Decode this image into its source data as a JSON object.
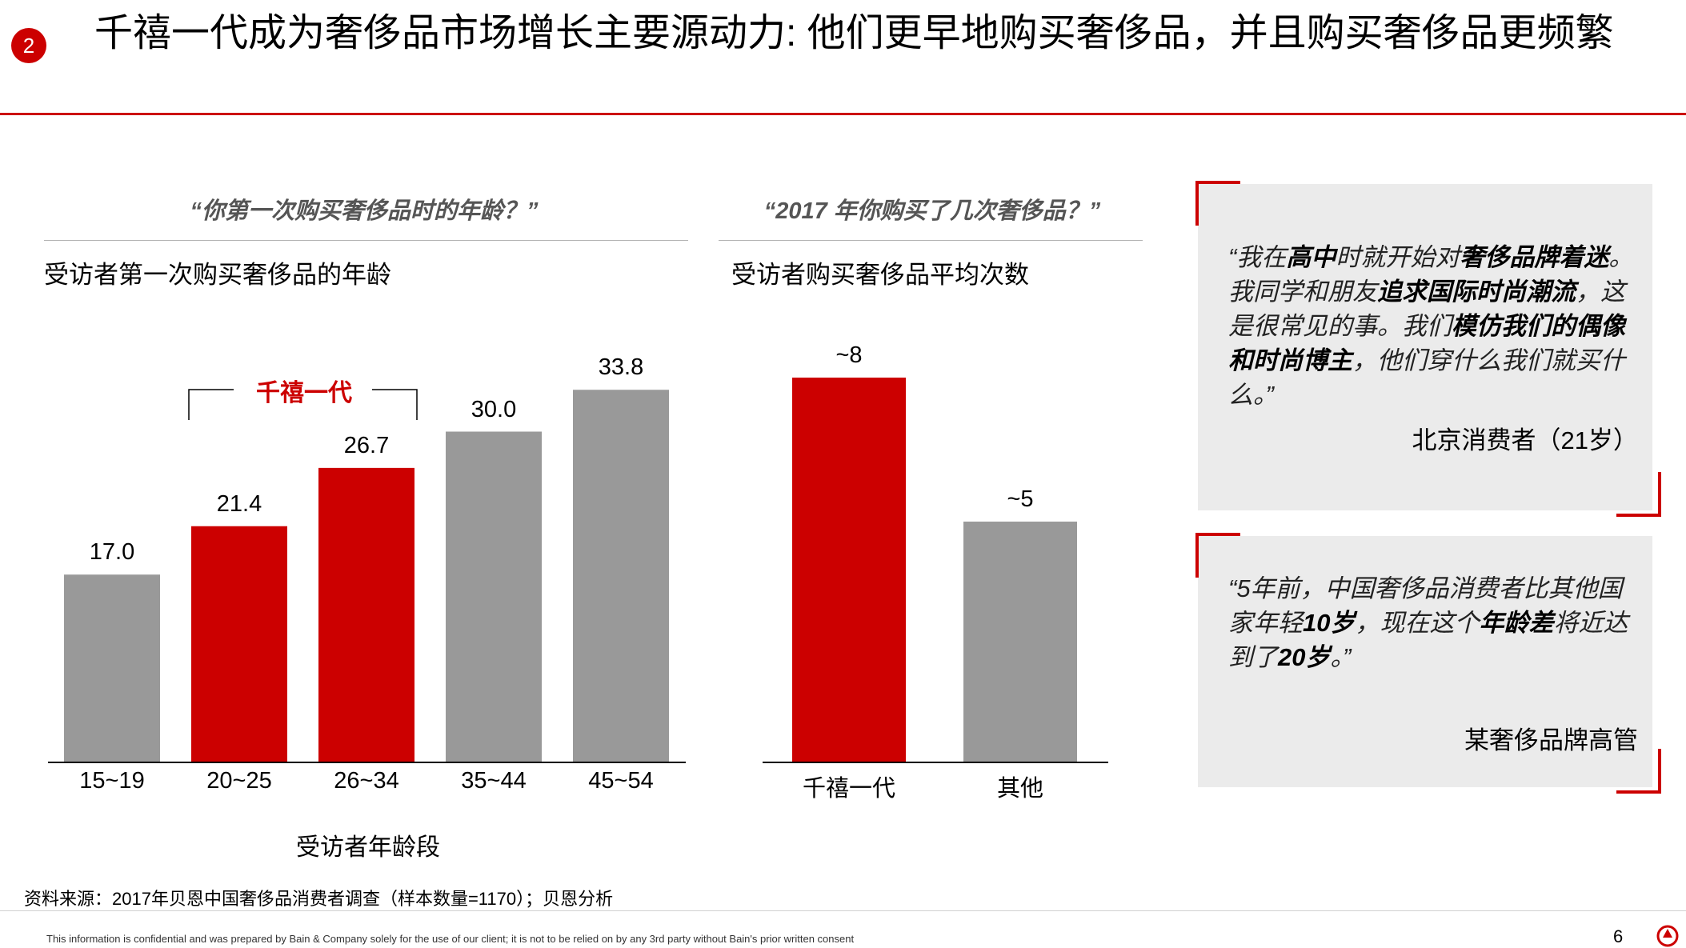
{
  "header": {
    "badge": "2",
    "title": "千禧一代成为奢侈品市场增长主要源动力: 他们更早地购买奢侈品，并且购买奢侈品更频繁"
  },
  "left_panel": {
    "question": "“你第一次购买奢侈品时的年龄？”",
    "subtitle": "受访者第一次购买奢侈品的年龄",
    "bracket_label": "千禧一代",
    "axis_label": "受访者年龄段"
  },
  "middle_panel": {
    "question": "“2017 年你购买了几次奢侈品？”",
    "subtitle": "受访者购买奢侈品平均次数"
  },
  "chart_data": [
    {
      "type": "bar",
      "title": "受访者第一次购买奢侈品的年龄",
      "xlabel": "受访者年龄段",
      "ylabel": "",
      "categories": [
        "15~19",
        "20~25",
        "26~34",
        "35~44",
        "45~54"
      ],
      "values": [
        17.0,
        21.4,
        26.7,
        30.0,
        33.8
      ],
      "value_labels": [
        "17.0",
        "21.4",
        "26.7",
        "30.0",
        "33.8"
      ],
      "highlighted": [
        false,
        true,
        true,
        false,
        false
      ],
      "ylim": [
        0,
        40
      ],
      "colors": {
        "highlight": "#cc0000",
        "default": "#999999"
      }
    },
    {
      "type": "bar",
      "title": "受访者购买奢侈品平均次数",
      "xlabel": "",
      "ylabel": "",
      "categories": [
        "千禧一代",
        "其他"
      ],
      "values": [
        8,
        5
      ],
      "value_labels": [
        "~8",
        "~5"
      ],
      "highlighted": [
        true,
        false
      ],
      "ylim": [
        0,
        9
      ],
      "colors": {
        "highlight": "#cc0000",
        "default": "#999999"
      }
    }
  ],
  "quotes": [
    {
      "segments": [
        {
          "t": "“我在",
          "b": false
        },
        {
          "t": "高中",
          "b": true
        },
        {
          "t": "时就开始对",
          "b": false
        },
        {
          "t": "奢侈品牌着迷",
          "b": true
        },
        {
          "t": "。我同学和朋友",
          "b": false
        },
        {
          "t": "追求国际时尚潮流",
          "b": true
        },
        {
          "t": "，这是很常见的事。我们",
          "b": false
        },
        {
          "t": "模仿我们的偶像和时尚博主",
          "b": true
        },
        {
          "t": "，他们穿什么我们就买什么。”",
          "b": false
        }
      ],
      "attribution": "北京消费者（21岁）"
    },
    {
      "segments": [
        {
          "t": "“5年前，中国奢侈品消费者比其他国家年轻",
          "b": false
        },
        {
          "t": "10岁",
          "b": true
        },
        {
          "t": "，现在这个",
          "b": false
        },
        {
          "t": "年龄差",
          "b": true
        },
        {
          "t": "将近达到了",
          "b": false
        },
        {
          "t": "20岁",
          "b": true
        },
        {
          "t": "。”",
          "b": false
        }
      ],
      "attribution": "某奢侈品牌高管"
    }
  ],
  "footer": {
    "source": "资料来源：2017年贝恩中国奢侈品消费者调查（样本数量=1170）；贝恩分析",
    "disclaimer": "This information is confidential and was prepared by Bain & Company solely for the use of our client; it is not to be relied on by any 3rd party without Bain's prior written consent",
    "page_number": "6"
  },
  "colors": {
    "accent": "#cc0000",
    "bar_gray": "#999999",
    "quote_bg": "#ebebeb"
  }
}
